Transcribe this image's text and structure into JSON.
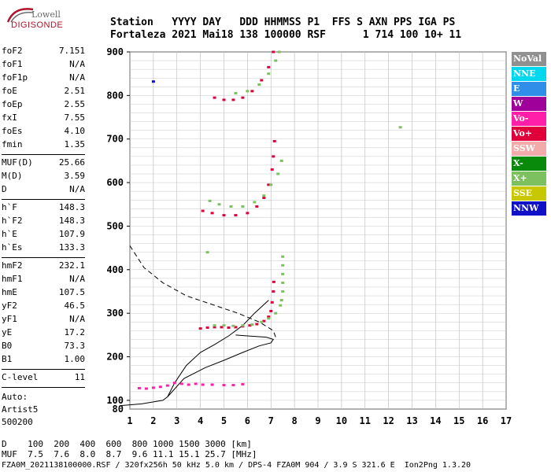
{
  "logo": {
    "line1": "Lowell",
    "line2": "DIGISONDE"
  },
  "header": {
    "line1": "Station   YYYY DAY   DDD HHMMSS P1  FFS S AXN PPS IGA PS",
    "line2": "Fortaleza 2021 Mai18 138 100000 RSF      1 714 100 10+ 11"
  },
  "params": {
    "group1": [
      {
        "label": "foF2",
        "value": "7.151"
      },
      {
        "label": "foF1",
        "value": "N/A"
      },
      {
        "label": "foF1p",
        "value": "N/A"
      },
      {
        "label": "foE",
        "value": "2.51"
      },
      {
        "label": "foEp",
        "value": "2.55"
      },
      {
        "label": "fxI",
        "value": "7.55"
      },
      {
        "label": "foEs",
        "value": "4.10"
      },
      {
        "label": "fmin",
        "value": "1.35"
      }
    ],
    "group2": [
      {
        "label": "MUF(D)",
        "value": "25.66"
      },
      {
        "label": "M(D)",
        "value": "3.59"
      },
      {
        "label": "D",
        "value": "N/A"
      }
    ],
    "group3": [
      {
        "label": "h`F",
        "value": "148.3"
      },
      {
        "label": "h`F2",
        "value": "148.3"
      },
      {
        "label": "h`E",
        "value": "107.9"
      },
      {
        "label": "h`Es",
        "value": "133.3"
      }
    ],
    "group4": [
      {
        "label": "hmF2",
        "value": "232.1"
      },
      {
        "label": "hmF1",
        "value": "N/A"
      },
      {
        "label": "hmE",
        "value": "107.5"
      },
      {
        "label": "yF2",
        "value": "46.5"
      },
      {
        "label": "yF1",
        "value": "N/A"
      },
      {
        "label": "yE",
        "value": "17.2"
      },
      {
        "label": "B0",
        "value": "73.3"
      },
      {
        "label": "B1",
        "value": "1.00"
      }
    ],
    "clevel": {
      "label": "C-level",
      "value": "11"
    },
    "auto": [
      "Auto:",
      "Artist5",
      "500200"
    ]
  },
  "legend": [
    {
      "label": "NoVal",
      "color": "#909090"
    },
    {
      "label": "NNE",
      "color": "#00d8f0"
    },
    {
      "label": "E",
      "color": "#2f8fe8"
    },
    {
      "label": "W",
      "color": "#a0009a"
    },
    {
      "label": "Vo-",
      "color": "#ff1fa8"
    },
    {
      "label": "Vo+",
      "color": "#e0003a"
    },
    {
      "label": "SSW",
      "color": "#f2aaaa"
    },
    {
      "label": "X-",
      "color": "#0a8a0a"
    },
    {
      "label": "X+",
      "color": "#7cc060"
    },
    {
      "label": "SSE",
      "color": "#c8c800"
    },
    {
      "label": "NNW",
      "color": "#1010c8"
    }
  ],
  "chart_data": {
    "type": "scatter",
    "xlim": [
      1,
      17
    ],
    "ylim": [
      80,
      900
    ],
    "x_ticks": [
      "1",
      "2",
      "3",
      "4",
      "5",
      "6",
      "7",
      "8",
      "9",
      "10",
      "11",
      "12",
      "13",
      "14",
      "15",
      "16",
      "17"
    ],
    "y_ticks": [
      "100",
      "200",
      "300",
      "400",
      "500",
      "600",
      "700",
      "800",
      "900"
    ],
    "y_first_label": "80",
    "grid": true,
    "traces": [
      {
        "name": "o-trace E/Es",
        "color": "#ff1fa8",
        "points": [
          [
            1.4,
            128
          ],
          [
            1.7,
            127
          ],
          [
            2.0,
            129
          ],
          [
            2.3,
            131
          ],
          [
            2.6,
            134
          ],
          [
            2.9,
            140
          ],
          [
            3.2,
            138
          ],
          [
            3.5,
            136
          ],
          [
            3.8,
            138
          ],
          [
            4.1,
            136
          ],
          [
            4.5,
            136
          ],
          [
            5.0,
            135
          ],
          [
            5.4,
            135
          ],
          [
            5.8,
            137
          ]
        ]
      },
      {
        "name": "o-trace F",
        "color": "#e0003a",
        "points": [
          [
            4.0,
            265
          ],
          [
            4.3,
            267
          ],
          [
            4.6,
            268
          ],
          [
            4.9,
            268
          ],
          [
            5.2,
            267
          ],
          [
            5.5,
            268
          ],
          [
            5.8,
            270
          ],
          [
            6.1,
            272
          ],
          [
            6.4,
            275
          ],
          [
            6.7,
            282
          ],
          [
            6.9,
            292
          ],
          [
            7.0,
            305
          ],
          [
            7.05,
            325
          ],
          [
            7.1,
            350
          ],
          [
            7.12,
            372
          ]
        ]
      },
      {
        "name": "x-trace F",
        "color": "#7cc060",
        "points": [
          [
            4.6,
            272
          ],
          [
            5.0,
            272
          ],
          [
            5.4,
            271
          ],
          [
            5.8,
            272
          ],
          [
            6.2,
            274
          ],
          [
            6.6,
            280
          ],
          [
            6.9,
            288
          ],
          [
            7.2,
            300
          ],
          [
            7.4,
            318
          ],
          [
            7.45,
            330
          ]
        ]
      },
      {
        "name": "2F o-trace",
        "color": "#e0003a",
        "points": [
          [
            4.1,
            535
          ],
          [
            4.5,
            530
          ],
          [
            5.0,
            525
          ],
          [
            5.5,
            525
          ],
          [
            6.0,
            530
          ],
          [
            6.4,
            545
          ],
          [
            6.7,
            565
          ],
          [
            6.9,
            595
          ],
          [
            7.05,
            630
          ],
          [
            7.1,
            660
          ],
          [
            7.15,
            695
          ]
        ]
      },
      {
        "name": "2F x-trace",
        "color": "#7cc060",
        "points": [
          [
            4.4,
            558
          ],
          [
            4.8,
            550
          ],
          [
            5.3,
            545
          ],
          [
            5.8,
            545
          ],
          [
            6.3,
            555
          ],
          [
            6.7,
            570
          ],
          [
            7.0,
            595
          ],
          [
            7.3,
            620
          ],
          [
            7.45,
            650
          ]
        ]
      },
      {
        "name": "3F o-trace",
        "color": "#e0003a",
        "points": [
          [
            4.6,
            795
          ],
          [
            5.0,
            790
          ],
          [
            5.4,
            790
          ],
          [
            5.8,
            795
          ],
          [
            6.2,
            810
          ],
          [
            6.6,
            835
          ],
          [
            6.9,
            865
          ],
          [
            7.1,
            900
          ]
        ]
      },
      {
        "name": "3F x-trace",
        "color": "#7cc060",
        "points": [
          [
            5.5,
            805
          ],
          [
            6.0,
            810
          ],
          [
            6.5,
            825
          ],
          [
            6.9,
            850
          ],
          [
            7.2,
            880
          ],
          [
            7.35,
            900
          ]
        ]
      },
      {
        "name": "Vertical x echoes",
        "color": "#7cc060",
        "points": [
          [
            7.5,
            350
          ],
          [
            7.5,
            370
          ],
          [
            7.5,
            390
          ],
          [
            7.5,
            410
          ],
          [
            7.5,
            430
          ]
        ]
      },
      {
        "name": "isolated",
        "color": "#7cc060",
        "points": [
          [
            12.5,
            727
          ],
          [
            4.3,
            440
          ]
        ]
      },
      {
        "name": "isolated-nnw",
        "color": "#1010c8",
        "points": [
          [
            2.0,
            832
          ]
        ]
      }
    ],
    "profile_solid": [
      [
        0.6,
        88
      ],
      [
        1.5,
        92
      ],
      [
        2.4,
        100
      ],
      [
        2.6,
        108
      ],
      [
        2.9,
        140
      ],
      [
        3.4,
        180
      ],
      [
        4.0,
        210
      ],
      [
        4.6,
        228
      ],
      [
        5.2,
        248
      ],
      [
        5.8,
        272
      ],
      [
        6.3,
        300
      ],
      [
        6.9,
        330
      ]
    ],
    "profile_solid2": [
      [
        2.6,
        108
      ],
      [
        3.3,
        150
      ],
      [
        4.2,
        175
      ],
      [
        5.0,
        192
      ],
      [
        5.8,
        210
      ],
      [
        6.5,
        225
      ],
      [
        7.0,
        232
      ],
      [
        7.1,
        240
      ],
      [
        6.8,
        245
      ],
      [
        6.0,
        248
      ],
      [
        5.5,
        250
      ]
    ],
    "profile_dashed": [
      [
        1.0,
        455
      ],
      [
        1.6,
        405
      ],
      [
        2.4,
        370
      ],
      [
        3.4,
        340
      ],
      [
        4.5,
        320
      ],
      [
        5.6,
        300
      ],
      [
        6.5,
        280
      ],
      [
        7.1,
        260
      ],
      [
        7.2,
        245
      ]
    ]
  },
  "bottom": {
    "line1": "D    100  200  400  600  800 1000 1500 3000 [km]",
    "line2": "MUF  7.5  7.6  8.0  8.7  9.6 11.1 15.1 25.7 [MHz]"
  },
  "footer": "FZA0M_2021138100000.RSF / 320fx256h 50 kHz 5.0 km / DPS-4 FZA0M 904 / 3.9 S 321.6 E  Ion2Png 1.3.20"
}
